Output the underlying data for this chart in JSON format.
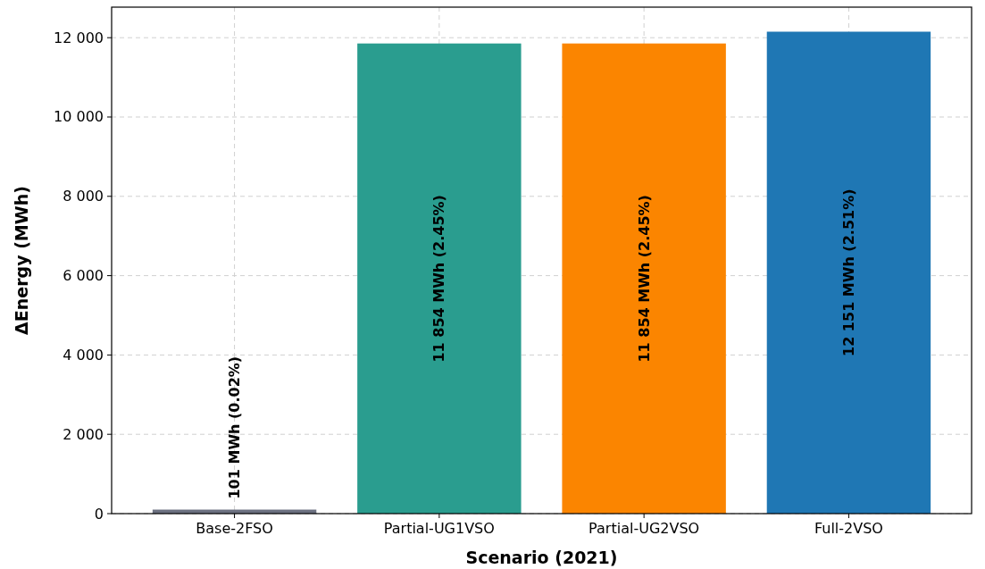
{
  "chart_data": {
    "type": "bar",
    "xlabel": "Scenario (2021)",
    "ylabel": "ΔEnergy (MWh)",
    "categories": [
      "Base-2FSO",
      "Partial-UG1VSO",
      "Partial-UG2VSO",
      "Full-2VSO"
    ],
    "values": [
      101,
      11854,
      11854,
      12151
    ],
    "colors": [
      "#6b7080",
      "#2a9d8f",
      "#fb8500",
      "#1f77b4"
    ],
    "value_labels": [
      "101 MWh (0.02%)",
      "11 854 MWh (2.45%)",
      "11 854 MWh (2.45%)",
      "12 151 MWh (2.51%)"
    ],
    "ylim": [
      0,
      12770
    ],
    "yticks": [
      0,
      {
        "value": 2000,
        "label": "2 000"
      },
      {
        "value": 4000,
        "label": "4 000"
      },
      {
        "value": 6000,
        "label": "6 000"
      },
      {
        "value": 8000,
        "label": "8 000"
      },
      {
        "value": 10000,
        "label": "10 000"
      },
      {
        "value": 12000,
        "label": "12 000"
      }
    ],
    "grid": true
  }
}
